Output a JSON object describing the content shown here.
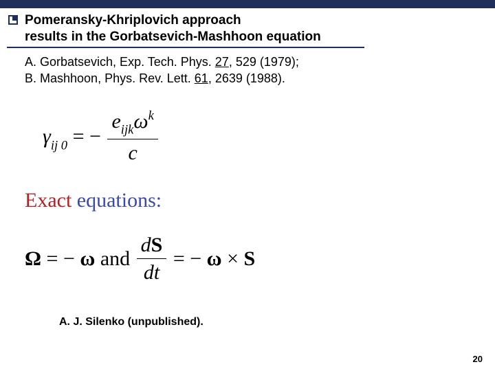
{
  "colors": {
    "brand": "#1f2e5a",
    "exact": "#b22222",
    "equations": "#3a4aa8",
    "text": "#000000",
    "background": "#ffffff"
  },
  "title": {
    "line1": "Pomeransky-Khriplovich approach",
    "line2": "results in the Gorbatsevich-Mashhoon equation"
  },
  "refs": {
    "line1a": "A. Gorbatsevich,   Exp. Tech. Phys.  ",
    "line1b_u": "27",
    "line1c": ", 529 (1979);",
    "line2a": "B. Mashhoon,  Phys. Rev. Lett. ",
    "line2b_u": "61",
    "line2c": ", 2639 (1988)."
  },
  "eq1": {
    "lhs_gamma": "γ",
    "lhs_sub": "ij 0",
    "eq": " = −",
    "num_e": "e",
    "num_sub": "ijk",
    "num_omega": "ω",
    "num_sup": "k",
    "den": "c",
    "fontsize": 30
  },
  "eq2_label": {
    "exact": "Exact",
    "equations": " equations:"
  },
  "eq2": {
    "omega_cap": "Ω",
    "eq1": " = −",
    "omega_bold": "ω",
    "and": "   and   ",
    "dS": "d",
    "S1": "S",
    "dt": "dt",
    "eq2": " = −",
    "omega_bold2": "ω",
    "times": " × ",
    "S2": "S",
    "fontsize": 30
  },
  "footer_ref": "A. J. Silenko (unpublished).",
  "page": "20"
}
